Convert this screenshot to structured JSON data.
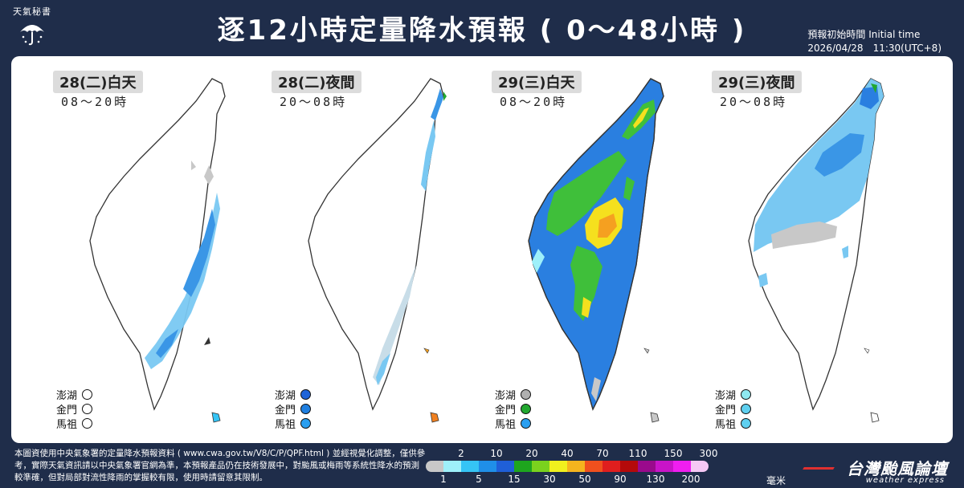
{
  "header": {
    "logo_text": "天氣秘書",
    "title": "逐12小時定量降水預報 ( 0～48小時 )",
    "init_label": "預報初始時間 Initial time",
    "init_time": "2026/04/28　11:30(UTC+8)"
  },
  "panels": [
    {
      "day": "28(二)白天",
      "range": "08～20時",
      "rain_level": "light-east",
      "islands": [
        {
          "name": "澎湖",
          "color": "#ffffff"
        },
        {
          "name": "金門",
          "color": "#ffffff"
        },
        {
          "name": "馬祖",
          "color": "#ffffff"
        }
      ]
    },
    {
      "day": "28(二)夜間",
      "range": "20～08時",
      "rain_level": "light-northeast",
      "islands": [
        {
          "name": "澎湖",
          "color": "#1f64d8"
        },
        {
          "name": "金門",
          "color": "#1f7fe0"
        },
        {
          "name": "馬祖",
          "color": "#2a9ff0"
        }
      ]
    },
    {
      "day": "29(三)白天",
      "range": "08～20時",
      "rain_level": "heavy",
      "islands": [
        {
          "name": "澎湖",
          "color": "#b0b0b0"
        },
        {
          "name": "金門",
          "color": "#22a830"
        },
        {
          "name": "馬祖",
          "color": "#2a9ff0"
        }
      ]
    },
    {
      "day": "29(三)夜間",
      "range": "20～08時",
      "rain_level": "moderate-north",
      "islands": [
        {
          "name": "澎湖",
          "color": "#8fe8f0"
        },
        {
          "name": "金門",
          "color": "#5fd0f0"
        },
        {
          "name": "馬祖",
          "color": "#5fd0f0"
        }
      ]
    }
  ],
  "footer": {
    "disclaimer": "本圖資使用中央氣象署的定量降水預報資料 ( www.cwa.gov.tw/V8/C/P/QPF.html ) 並經視覺化調整，僅供參考，實際天氣資訊請以中央氣象署官網為準，本預報產品仍在技術發展中，對颱風或梅雨等系統性降水的預測較準確，但對局部對流性降雨的掌握較有限，使用時請留意其限制。",
    "legend_top": [
      "2",
      "10",
      "20",
      "40",
      "70",
      "110",
      "150",
      "300"
    ],
    "legend_bottom": [
      "1",
      "5",
      "15",
      "30",
      "50",
      "90",
      "130",
      "200"
    ],
    "legend_colors": [
      "#c8c8c8",
      "#9ef0fa",
      "#35c4f5",
      "#1f8fe8",
      "#1f5fd8",
      "#1ea51e",
      "#7ad21e",
      "#f0f01e",
      "#f5b41e",
      "#f0501e",
      "#e01e1e",
      "#b40a0a",
      "#9a0a8c",
      "#c814c8",
      "#f01ef0",
      "#f5c8f5"
    ],
    "unit": "毫米",
    "brand": "台灣颱風論壇",
    "brand_sub": "weather express"
  }
}
